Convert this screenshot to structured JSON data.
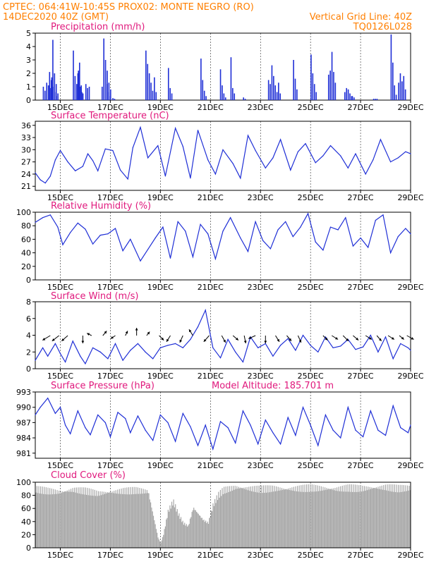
{
  "header": {
    "line1_left": "CPTEC:   064:41W-10:45S   PROX02: MONTE NEGRO (RO)",
    "line2_left": "14DEC2020 40Z (GMT)",
    "line2_right": "Vertical Grid Line: 40Z",
    "line3_right": "TQ0126L028"
  },
  "colors": {
    "header": "#ff7f00",
    "title": "#e0197d",
    "series": "#1f2fd6",
    "cloud": "#a8a8a8",
    "arrow": "#000000"
  },
  "chart_data": [
    {
      "type": "bar",
      "title": "Precipitation (mm/h)",
      "ylim": [
        0,
        5
      ],
      "yticks": [
        "0",
        "1",
        "2",
        "3",
        "4",
        "5"
      ],
      "xticks": [
        "15DEC",
        "17DEC",
        "19DEC",
        "21DEC",
        "23DEC",
        "25DEC",
        "27DEC",
        "29DEC"
      ],
      "x_start_day": 14.0,
      "x_end_day": 29.0,
      "events": [
        {
          "day": 14.3,
          "values": [
            1.0,
            0.7,
            1.3,
            1.1,
            0.9,
            1.7
          ]
        },
        {
          "day": 14.55,
          "values": [
            2.1,
            1.5,
            1.0,
            0.6,
            0.3
          ]
        },
        {
          "day": 14.68,
          "values": [
            4.5,
            2.0,
            1.2,
            0.5
          ]
        },
        {
          "day": 15.5,
          "values": [
            3.7,
            1.8,
            1.2,
            2.2,
            1.0,
            0.6
          ]
        },
        {
          "day": 15.68,
          "values": [
            2.0,
            2.8,
            1.1,
            0.5
          ]
        },
        {
          "day": 16.0,
          "values": [
            1.2,
            0.9,
            1.0
          ]
        },
        {
          "day": 16.65,
          "values": [
            1.0,
            4.6,
            3.0,
            2.2,
            1.3,
            0.8
          ]
        },
        {
          "day": 16.85,
          "values": [
            1.2,
            0.6,
            0.3
          ]
        },
        {
          "day": 17.08,
          "values": [
            0.15,
            0.1
          ]
        },
        {
          "day": 18.4,
          "values": [
            3.7,
            2.7,
            2.0,
            1.3,
            0.7,
            1.7,
            0.6
          ]
        },
        {
          "day": 19.3,
          "values": [
            2.4,
            0.9,
            0.5
          ]
        },
        {
          "day": 20.6,
          "values": [
            3.1,
            1.5,
            0.7,
            0.3
          ]
        },
        {
          "day": 21.38,
          "values": [
            2.3,
            1.1,
            0.5,
            0.2
          ]
        },
        {
          "day": 21.8,
          "values": [
            3.2,
            0.9,
            0.5
          ]
        },
        {
          "day": 22.3,
          "values": [
            0.2,
            0.1
          ]
        },
        {
          "day": 23.3,
          "values": [
            1.5,
            1.2,
            2.6,
            1.8,
            1.1,
            0.6
          ]
        },
        {
          "day": 23.7,
          "values": [
            1.3,
            0.5
          ]
        },
        {
          "day": 24.3,
          "values": [
            3.0,
            1.6,
            0.8
          ]
        },
        {
          "day": 25.0,
          "values": [
            3.4,
            2.0,
            1.2,
            0.6
          ]
        },
        {
          "day": 25.7,
          "values": [
            1.9,
            2.2,
            3.6,
            2.1,
            1.3
          ]
        },
        {
          "day": 26.35,
          "values": [
            0.6,
            0.9,
            0.8,
            0.5,
            0.3
          ]
        },
        {
          "day": 26.65,
          "values": [
            0.3,
            0.2
          ]
        },
        {
          "day": 27.5,
          "values": [
            0.1,
            0.1,
            0.1
          ]
        },
        {
          "day": 28.2,
          "values": [
            4.9,
            2.8,
            1.1,
            0.4
          ]
        },
        {
          "day": 28.5,
          "values": [
            1.3,
            2.0,
            1.4,
            1.8,
            0.8
          ]
        }
      ]
    },
    {
      "type": "line",
      "title": "Surface Temperature (nC)",
      "ylim": [
        20,
        37
      ],
      "yticks": [
        "21",
        "24",
        "27",
        "30",
        "33",
        "36"
      ],
      "ytick_values": [
        21,
        24,
        27,
        30,
        33,
        36
      ],
      "xticks": [
        "15DEC",
        "17DEC",
        "19DEC",
        "21DEC",
        "23DEC",
        "25DEC",
        "27DEC",
        "29DEC"
      ],
      "x": [
        14.0,
        14.2,
        14.4,
        14.6,
        14.8,
        15.0,
        15.3,
        15.6,
        15.9,
        16.1,
        16.3,
        16.5,
        16.8,
        17.1,
        17.4,
        17.7,
        17.9,
        18.2,
        18.5,
        18.9,
        19.2,
        19.6,
        19.9,
        20.2,
        20.5,
        20.9,
        21.2,
        21.5,
        21.9,
        22.2,
        22.5,
        22.8,
        23.2,
        23.5,
        23.8,
        24.2,
        24.5,
        24.8,
        25.2,
        25.5,
        25.8,
        26.2,
        26.5,
        26.8,
        27.2,
        27.5,
        27.8,
        28.2,
        28.5,
        28.8,
        29.0
      ],
      "values": [
        24.3,
        22.6,
        21.8,
        23.5,
        27.5,
        29.8,
        27.0,
        24.8,
        25.9,
        29.0,
        27.3,
        24.8,
        30.2,
        29.8,
        25.0,
        22.8,
        30.5,
        35.5,
        28.0,
        31.0,
        23.5,
        35.3,
        30.8,
        23.0,
        34.8,
        27.5,
        24.0,
        30.0,
        26.6,
        23.0,
        33.5,
        29.8,
        25.5,
        28.0,
        32.5,
        25.0,
        29.5,
        31.5,
        26.8,
        28.5,
        31.0,
        28.5,
        25.5,
        29.0,
        24.0,
        27.5,
        32.5,
        27.0,
        28.0,
        29.5,
        29.0
      ]
    },
    {
      "type": "line",
      "title": "Relative Humidity (%)",
      "ylim": [
        0,
        100
      ],
      "yticks": [
        "0",
        "20",
        "40",
        "60",
        "80",
        "100"
      ],
      "ytick_values": [
        0,
        20,
        40,
        60,
        80,
        100
      ],
      "xticks": [
        "15DEC",
        "17DEC",
        "19DEC",
        "21DEC",
        "23DEC",
        "25DEC",
        "27DEC",
        "29DEC"
      ],
      "x": [
        14.0,
        14.3,
        14.6,
        14.9,
        15.1,
        15.4,
        15.7,
        16.0,
        16.3,
        16.6,
        16.9,
        17.2,
        17.5,
        17.8,
        18.2,
        18.5,
        18.8,
        19.1,
        19.4,
        19.7,
        20.0,
        20.3,
        20.6,
        20.9,
        21.2,
        21.5,
        21.8,
        22.2,
        22.5,
        22.8,
        23.1,
        23.4,
        23.7,
        24.0,
        24.3,
        24.6,
        24.9,
        25.2,
        25.5,
        25.8,
        26.1,
        26.4,
        26.7,
        27.0,
        27.3,
        27.6,
        27.9,
        28.2,
        28.5,
        28.8,
        29.0
      ],
      "values": [
        85,
        92,
        96,
        78,
        52,
        70,
        84,
        75,
        53,
        66,
        68,
        76,
        43,
        60,
        28,
        45,
        62,
        78,
        32,
        86,
        72,
        34,
        82,
        68,
        31,
        72,
        92,
        62,
        42,
        86,
        58,
        46,
        74,
        86,
        64,
        78,
        98,
        56,
        44,
        78,
        74,
        92,
        50,
        62,
        48,
        88,
        96,
        40,
        64,
        76,
        68
      ]
    },
    {
      "type": "line",
      "title": "Surface Wind (m/s)",
      "ylim": [
        0,
        8
      ],
      "yticks": [
        "0",
        "2",
        "4",
        "6",
        "8"
      ],
      "ytick_values": [
        0,
        2,
        4,
        6,
        8
      ],
      "xticks": [
        "15DEC",
        "17DEC",
        "19DEC",
        "21DEC",
        "23DEC",
        "25DEC",
        "27DEC",
        "29DEC"
      ],
      "x": [
        14.0,
        14.3,
        14.5,
        14.8,
        15.0,
        15.2,
        15.5,
        15.8,
        16.0,
        16.3,
        16.6,
        16.9,
        17.2,
        17.5,
        17.8,
        18.1,
        18.4,
        18.7,
        19.0,
        19.3,
        19.6,
        19.9,
        20.2,
        20.5,
        20.8,
        21.1,
        21.4,
        21.7,
        22.0,
        22.3,
        22.6,
        22.9,
        23.2,
        23.5,
        23.8,
        24.1,
        24.4,
        24.7,
        25.0,
        25.3,
        25.6,
        25.9,
        26.2,
        26.5,
        26.8,
        27.1,
        27.4,
        27.7,
        28.0,
        28.3,
        28.6,
        28.9,
        29.0
      ],
      "values": [
        1.0,
        2.5,
        1.5,
        3.0,
        1.8,
        0.8,
        3.3,
        1.5,
        0.6,
        2.5,
        2.0,
        1.2,
        3.0,
        1.0,
        2.2,
        3.0,
        2.0,
        1.2,
        2.5,
        2.8,
        3.0,
        2.5,
        3.5,
        5.0,
        7.0,
        2.5,
        1.3,
        3.5,
        2.0,
        0.8,
        3.8,
        2.5,
        3.0,
        1.5,
        2.8,
        3.6,
        2.2,
        4.0,
        2.8,
        2.0,
        3.8,
        2.5,
        2.7,
        3.5,
        2.3,
        2.6,
        4.0,
        2.0,
        3.8,
        1.2,
        3.0,
        2.5,
        2.2
      ],
      "arrows": [
        {
          "x": 14.6,
          "dx": -1,
          "dy": -0.6
        },
        {
          "x": 14.95,
          "dx": -0.9,
          "dy": -0.7
        },
        {
          "x": 15.3,
          "dx": -0.8,
          "dy": -0.7
        },
        {
          "x": 15.9,
          "dx": 0,
          "dy": -1
        },
        {
          "x": 16.25,
          "dx": -0.6,
          "dy": 0.3
        },
        {
          "x": 16.7,
          "dx": 0.5,
          "dy": 0.6
        },
        {
          "x": 17.2,
          "dx": -0.6,
          "dy": -0.4
        },
        {
          "x": 17.6,
          "dx": 0.3,
          "dy": 0.6
        },
        {
          "x": 18.05,
          "dx": 0,
          "dy": 1
        },
        {
          "x": 18.45,
          "dx": 0.4,
          "dy": 0.5
        },
        {
          "x": 18.95,
          "dx": 0.6,
          "dy": -0.6
        },
        {
          "x": 19.4,
          "dx": -0.5,
          "dy": -0.8
        },
        {
          "x": 19.9,
          "dx": -0.4,
          "dy": -0.9
        },
        {
          "x": 20.3,
          "dx": -0.5,
          "dy": 0.8
        },
        {
          "x": 20.95,
          "dx": -0.7,
          "dy": -0.8
        },
        {
          "x": 21.45,
          "dx": 0.5,
          "dy": -0.9
        },
        {
          "x": 21.9,
          "dx": 0.7,
          "dy": -0.6
        },
        {
          "x": 22.35,
          "dx": 0.2,
          "dy": -1
        },
        {
          "x": 22.8,
          "dx": -0.9,
          "dy": -0.4
        },
        {
          "x": 23.2,
          "dx": 0,
          "dy": -1
        },
        {
          "x": 23.6,
          "dx": 0.5,
          "dy": -0.8
        },
        {
          "x": 24.05,
          "dx": 0.6,
          "dy": -0.7
        },
        {
          "x": 24.5,
          "dx": 0.4,
          "dy": -0.9
        },
        {
          "x": 25.5,
          "dx": 0.6,
          "dy": -0.6
        },
        {
          "x": 25.85,
          "dx": 0.8,
          "dy": -0.5
        },
        {
          "x": 26.3,
          "dx": 0.7,
          "dy": -0.7
        },
        {
          "x": 26.7,
          "dx": 0.7,
          "dy": -0.6
        },
        {
          "x": 27.2,
          "dx": 0.8,
          "dy": -0.5
        },
        {
          "x": 27.65,
          "dx": 0.6,
          "dy": -0.7
        },
        {
          "x": 28.1,
          "dx": 0.8,
          "dy": -0.5
        },
        {
          "x": 28.55,
          "dx": 0.6,
          "dy": -0.5
        },
        {
          "x": 28.85,
          "dx": 0.9,
          "dy": -0.5
        }
      ]
    },
    {
      "type": "line",
      "title": "Surface Pressure (hPa)",
      "subtitle": "Model Altitude: 185.701 m",
      "ylim": [
        980,
        993
      ],
      "yticks": [
        "981",
        "984",
        "987",
        "990",
        "993"
      ],
      "ytick_values": [
        981,
        984,
        987,
        990,
        993
      ],
      "xticks": [
        "15DEC",
        "17DEC",
        "19DEC",
        "21DEC",
        "23DEC",
        "25DEC",
        "27DEC",
        "29DEC"
      ],
      "x": [
        14.0,
        14.2,
        14.5,
        14.8,
        15.0,
        15.2,
        15.4,
        15.7,
        16.0,
        16.2,
        16.5,
        16.8,
        17.0,
        17.3,
        17.6,
        17.8,
        18.1,
        18.4,
        18.7,
        19.0,
        19.3,
        19.6,
        19.9,
        20.2,
        20.5,
        20.8,
        21.1,
        21.4,
        21.7,
        22.0,
        22.3,
        22.6,
        22.9,
        23.2,
        23.5,
        23.8,
        24.1,
        24.4,
        24.7,
        25.0,
        25.3,
        25.6,
        25.9,
        26.2,
        26.5,
        26.8,
        27.1,
        27.4,
        27.7,
        28.0,
        28.3,
        28.6,
        28.9,
        29.0
      ],
      "values": [
        988.5,
        990.0,
        991.8,
        988.8,
        990.0,
        986.5,
        984.8,
        989.3,
        986.0,
        984.6,
        988.5,
        987.0,
        984.2,
        989.0,
        987.8,
        985.0,
        988.3,
        985.5,
        983.5,
        988.5,
        987.0,
        983.3,
        988.8,
        986.2,
        982.5,
        986.5,
        981.8,
        987.2,
        986.0,
        983.0,
        989.3,
        986.5,
        982.8,
        987.5,
        985.0,
        982.8,
        988.0,
        984.5,
        990.0,
        986.5,
        982.5,
        988.5,
        985.5,
        984.0,
        990.0,
        985.5,
        984.2,
        989.3,
        985.5,
        984.5,
        990.3,
        986.0,
        985.0,
        986.5
      ]
    },
    {
      "type": "bar",
      "title": "Cloud Cover (%)",
      "ylim": [
        0,
        100
      ],
      "yticks": [
        "0",
        "20",
        "40",
        "60",
        "80",
        "100"
      ],
      "ytick_values": [
        0,
        20,
        40,
        60,
        80,
        100
      ],
      "xticks": [
        "15DEC",
        "17DEC",
        "19DEC",
        "21DEC",
        "23DEC",
        "25DEC",
        "27DEC",
        "29DEC"
      ],
      "x": [
        14.0,
        14.5,
        15.0,
        15.5,
        16.0,
        16.5,
        17.0,
        17.5,
        18.0,
        18.5,
        18.9,
        19.0,
        19.1,
        19.3,
        19.5,
        19.7,
        19.9,
        20.1,
        20.3,
        20.5,
        20.7,
        20.9,
        21.1,
        21.3,
        21.5,
        22.0,
        22.5,
        23.0,
        23.5,
        24.0,
        24.5,
        25.0,
        25.5,
        26.0,
        26.5,
        27.0,
        27.5,
        28.0,
        28.5,
        29.0
      ],
      "values": [
        95,
        92,
        90,
        94,
        92,
        88,
        90,
        92,
        93,
        91,
        15,
        8,
        20,
        60,
        75,
        55,
        40,
        35,
        65,
        55,
        45,
        40,
        70,
        85,
        93,
        98,
        96,
        95,
        96,
        95,
        96,
        97,
        96,
        95,
        97,
        96,
        97,
        98,
        96,
        97
      ]
    }
  ]
}
